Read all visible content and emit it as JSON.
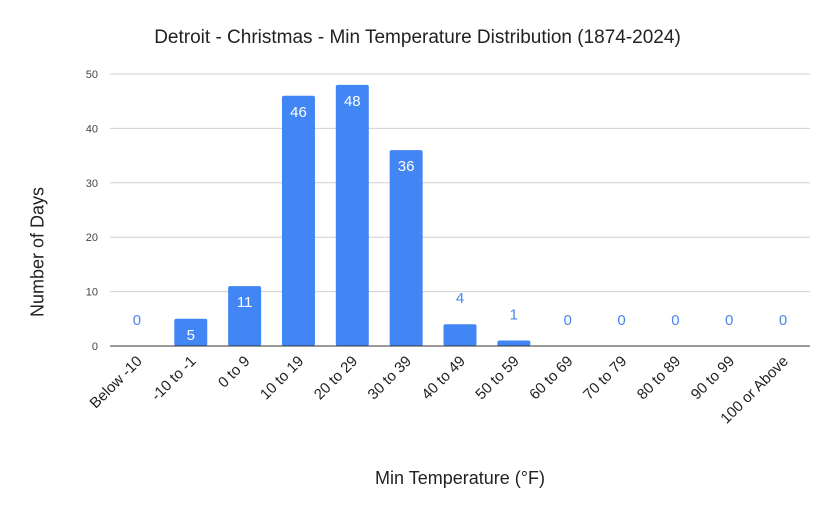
{
  "chart_data": {
    "type": "bar",
    "title": "Detroit - Christmas - Min Temperature Distribution (1874-2024)",
    "xlabel": "Min Temperature (°F)",
    "ylabel": "Number of Days",
    "categories": [
      "Below -10",
      "-10 to -1",
      "0 to 9",
      "10 to 19",
      "20 to 29",
      "30 to 39",
      "40 to 49",
      "50 to 59",
      "60 to 69",
      "70 to 79",
      "80 to 89",
      "90 to 99",
      "100 or Above"
    ],
    "values": [
      0,
      5,
      11,
      46,
      48,
      36,
      4,
      1,
      0,
      0,
      0,
      0,
      0
    ],
    "data_labels": [
      "0",
      "5",
      "11",
      "46",
      "48",
      "36",
      "4",
      "1",
      "0",
      "0",
      "0",
      "0",
      "0"
    ],
    "ylim": [
      0,
      50
    ],
    "yticks": [
      0,
      10,
      20,
      30,
      40,
      50
    ],
    "ytick_labels": [
      "0",
      "10",
      "20",
      "30",
      "40",
      "50"
    ],
    "grid": true,
    "legend": "none",
    "colors": {
      "bar": "#4285f4",
      "label_outside": "#4a86e8",
      "gridline": "#d0d0d0",
      "axis": "#333333"
    }
  }
}
